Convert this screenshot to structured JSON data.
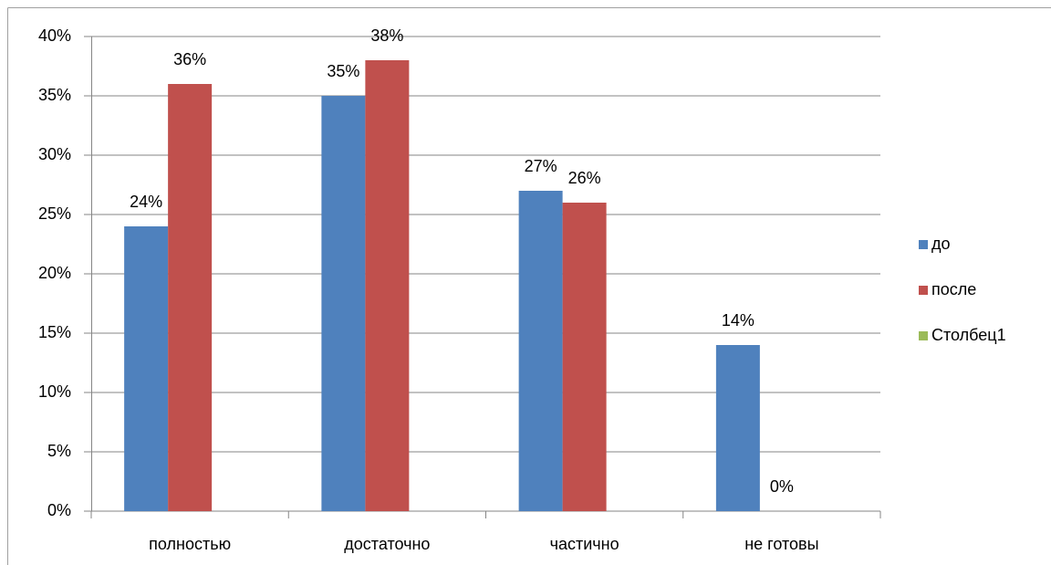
{
  "chart_data": {
    "type": "bar",
    "categories": [
      "полностью",
      "достаточно",
      "частично",
      "не готовы"
    ],
    "series": [
      {
        "name": "до",
        "color": "#4f81bd",
        "values": [
          24,
          35,
          27,
          14
        ],
        "value_labels": [
          "24%",
          "35%",
          "27%",
          "14%"
        ]
      },
      {
        "name": "после",
        "color": "#c0504d",
        "values": [
          36,
          38,
          26,
          0
        ],
        "value_labels": [
          "36%",
          "38%",
          "26%",
          "0%"
        ]
      },
      {
        "name": "Столбец1",
        "color": "#9bbb59",
        "values": [
          null,
          null,
          null,
          null
        ]
      }
    ],
    "ylim": [
      0,
      40
    ],
    "yticks": [
      {
        "value": 0,
        "label": "0%"
      },
      {
        "value": 5,
        "label": "5%"
      },
      {
        "value": 10,
        "label": "10%"
      },
      {
        "value": 15,
        "label": "15%"
      },
      {
        "value": 20,
        "label": "20%"
      },
      {
        "value": 25,
        "label": "25%"
      },
      {
        "value": 30,
        "label": "30%"
      },
      {
        "value": 35,
        "label": "35%"
      },
      {
        "value": 40,
        "label": "40%"
      }
    ],
    "grid": true,
    "legend": "right"
  }
}
